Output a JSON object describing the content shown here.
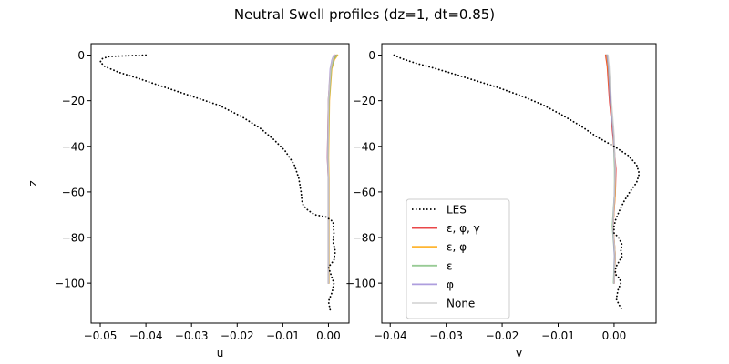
{
  "figure": {
    "suptitle": "Neutral Swell profiles (dz=1, dt=0.85)"
  },
  "colors": {
    "LES": "#000000",
    "eps_phi_gamma": "#e41a1c",
    "eps_phi": "#ffa500",
    "eps": "#7fbf7b",
    "phi": "#9b86d6",
    "None": "#cccccc"
  },
  "chart_data": [
    {
      "type": "line",
      "name": "u-profile",
      "title": "",
      "xlabel": "u",
      "ylabel": "z",
      "xlim": [
        -0.052,
        0.0045
      ],
      "ylim": [
        -117.5,
        5
      ],
      "xticks": [
        -0.05,
        -0.04,
        -0.03,
        -0.02,
        -0.01,
        0.0
      ],
      "xticklabels": [
        "−0.05",
        "−0.04",
        "−0.03",
        "−0.02",
        "−0.01",
        "0.00"
      ],
      "yticks": [
        0,
        -20,
        -40,
        -60,
        -80,
        -100
      ],
      "yticklabels": [
        "0",
        "−20",
        "−40",
        "−60",
        "−80",
        "−100"
      ],
      "series": [
        {
          "name": "LES",
          "style": "dotted",
          "points": [
            [
              -0.04,
              0
            ],
            [
              -0.044,
              -0.3
            ],
            [
              -0.048,
              -0.6
            ],
            [
              -0.0495,
              -1.5
            ],
            [
              -0.05,
              -3
            ],
            [
              -0.049,
              -5
            ],
            [
              -0.046,
              -7.5
            ],
            [
              -0.042,
              -10
            ],
            [
              -0.036,
              -14
            ],
            [
              -0.03,
              -18
            ],
            [
              -0.024,
              -22
            ],
            [
              -0.019,
              -27
            ],
            [
              -0.015,
              -32
            ],
            [
              -0.012,
              -37
            ],
            [
              -0.0095,
              -42
            ],
            [
              -0.0075,
              -48
            ],
            [
              -0.0065,
              -54
            ],
            [
              -0.006,
              -60
            ],
            [
              -0.0058,
              -64
            ],
            [
              -0.0055,
              -66
            ],
            [
              -0.0045,
              -68
            ],
            [
              -0.003,
              -70
            ],
            [
              -0.0005,
              -71
            ],
            [
              0.001,
              -73
            ],
            [
              0.0012,
              -78
            ],
            [
              0.001,
              -82
            ],
            [
              0.0015,
              -86
            ],
            [
              0.0012,
              -90
            ],
            [
              0.0,
              -93
            ],
            [
              0.0005,
              -96
            ],
            [
              0.0012,
              -100
            ],
            [
              0.0008,
              -104
            ],
            [
              0.0,
              -108
            ],
            [
              0.0004,
              -112
            ]
          ]
        },
        {
          "name": "ε, φ, γ",
          "style": "solid",
          "points": [
            [
              0.0015,
              0
            ],
            [
              0.001,
              -2
            ],
            [
              0.0005,
              -6
            ],
            [
              0.0,
              -20
            ],
            [
              -0.0002,
              -45
            ],
            [
              0.0,
              -55
            ],
            [
              0.0,
              -100
            ]
          ]
        },
        {
          "name": "ε, φ",
          "style": "solid",
          "points": [
            [
              0.002,
              0
            ],
            [
              0.0013,
              -2
            ],
            [
              0.0007,
              -6
            ],
            [
              0.0002,
              -20
            ],
            [
              0.0,
              -45
            ],
            [
              0.0001,
              -55
            ],
            [
              0.0001,
              -100
            ]
          ]
        },
        {
          "name": "ε",
          "style": "solid",
          "points": [
            [
              0.0018,
              0
            ],
            [
              0.0011,
              -2
            ],
            [
              0.0006,
              -6
            ],
            [
              0.0001,
              -20
            ],
            [
              -0.0001,
              -45
            ],
            [
              0.0,
              -55
            ],
            [
              0.0,
              -100
            ]
          ]
        },
        {
          "name": "φ",
          "style": "solid",
          "points": [
            [
              0.0012,
              0
            ],
            [
              0.0008,
              -2
            ],
            [
              0.0004,
              -6
            ],
            [
              0.0,
              -20
            ],
            [
              -0.0002,
              -45
            ],
            [
              0.0,
              -55
            ],
            [
              0.0,
              -100
            ]
          ]
        },
        {
          "name": "None",
          "style": "solid",
          "points": [
            [
              0.0014,
              0
            ],
            [
              0.0009,
              -2
            ],
            [
              0.0005,
              -6
            ],
            [
              0.0,
              -20
            ],
            [
              -0.0001,
              -45
            ],
            [
              0.0,
              -55
            ],
            [
              0.0,
              -100
            ]
          ]
        }
      ]
    },
    {
      "type": "line",
      "name": "v-profile",
      "title": "",
      "xlabel": "v",
      "ylabel": "",
      "xlim": [
        -0.0415,
        0.0075
      ],
      "ylim": [
        -117.5,
        5
      ],
      "xticks": [
        -0.04,
        -0.03,
        -0.02,
        -0.01,
        0.0
      ],
      "xticklabels": [
        "−0.04",
        "−0.03",
        "−0.02",
        "−0.01",
        "0.00"
      ],
      "yticks": [
        0,
        -20,
        -40,
        -60,
        -80,
        -100
      ],
      "yticklabels": [
        "0",
        "−20",
        "−40",
        "−60",
        "−80",
        "−100"
      ],
      "legend": {
        "location": "lower-left",
        "entries": [
          "LES",
          "ε, φ, γ",
          "ε, φ",
          "ε",
          "φ",
          "None"
        ]
      },
      "series": [
        {
          "name": "LES",
          "style": "dotted",
          "points": [
            [
              -0.0393,
              0
            ],
            [
              -0.038,
              -1.5
            ],
            [
              -0.0355,
              -3.5
            ],
            [
              -0.0325,
              -5.5
            ],
            [
              -0.029,
              -8
            ],
            [
              -0.025,
              -11
            ],
            [
              -0.021,
              -14
            ],
            [
              -0.017,
              -17.5
            ],
            [
              -0.013,
              -21.5
            ],
            [
              -0.0095,
              -26
            ],
            [
              -0.006,
              -31
            ],
            [
              -0.003,
              -36
            ],
            [
              0.0,
              -40
            ],
            [
              0.0025,
              -44
            ],
            [
              0.004,
              -48
            ],
            [
              0.0045,
              -52
            ],
            [
              0.004,
              -56
            ],
            [
              0.0028,
              -60
            ],
            [
              0.0018,
              -64
            ],
            [
              0.001,
              -68
            ],
            [
              0.0003,
              -72
            ],
            [
              0.0,
              -75
            ],
            [
              0.0,
              -78
            ],
            [
              0.0008,
              -80
            ],
            [
              0.0014,
              -83
            ],
            [
              0.0012,
              -86
            ],
            [
              0.0015,
              -88
            ],
            [
              0.001,
              -90
            ],
            [
              0.0003,
              -93
            ],
            [
              0.0002,
              -96
            ],
            [
              0.001,
              -98
            ],
            [
              0.0012,
              -100
            ],
            [
              0.0007,
              -103
            ],
            [
              0.0004,
              -107
            ],
            [
              0.001,
              -110
            ],
            [
              0.0015,
              -112
            ]
          ]
        },
        {
          "name": "ε, φ, γ",
          "style": "solid",
          "points": [
            [
              -0.0015,
              0
            ],
            [
              -0.0012,
              -5
            ],
            [
              -0.0008,
              -20
            ],
            [
              -0.0002,
              -35
            ],
            [
              0.0003,
              -50
            ],
            [
              0.0002,
              -60
            ],
            [
              -0.0002,
              -75
            ],
            [
              0.0002,
              -88
            ],
            [
              0.0,
              -100
            ]
          ]
        },
        {
          "name": "ε, φ",
          "style": "solid",
          "points": [
            [
              -0.0014,
              0
            ],
            [
              -0.0011,
              -5
            ],
            [
              -0.0007,
              -20
            ],
            [
              -0.0001,
              -35
            ],
            [
              0.0002,
              -50
            ],
            [
              0.0002,
              -60
            ],
            [
              -0.0002,
              -75
            ],
            [
              0.0002,
              -88
            ],
            [
              0.0,
              -100
            ]
          ]
        },
        {
          "name": "ε",
          "style": "solid",
          "points": [
            [
              -0.0012,
              0
            ],
            [
              -0.001,
              -5
            ],
            [
              -0.0006,
              -20
            ],
            [
              -0.0001,
              -35
            ],
            [
              0.0001,
              -50
            ],
            [
              0.0001,
              -60
            ],
            [
              -0.0003,
              -75
            ],
            [
              0.0001,
              -88
            ],
            [
              -0.0001,
              -100
            ]
          ]
        },
        {
          "name": "φ",
          "style": "solid",
          "points": [
            [
              -0.0013,
              0
            ],
            [
              -0.001,
              -5
            ],
            [
              -0.0007,
              -20
            ],
            [
              -0.0001,
              -35
            ],
            [
              0.0002,
              -50
            ],
            [
              0.0001,
              -60
            ],
            [
              -0.0002,
              -75
            ],
            [
              0.0001,
              -88
            ],
            [
              0.0,
              -100
            ]
          ]
        },
        {
          "name": "None",
          "style": "solid",
          "points": [
            [
              -0.0011,
              0
            ],
            [
              -0.0009,
              -5
            ],
            [
              -0.0005,
              -20
            ],
            [
              0.0,
              -35
            ],
            [
              0.0002,
              -50
            ],
            [
              0.0001,
              -60
            ],
            [
              -0.0002,
              -75
            ],
            [
              0.0002,
              -88
            ],
            [
              0.0,
              -100
            ]
          ]
        }
      ]
    }
  ]
}
